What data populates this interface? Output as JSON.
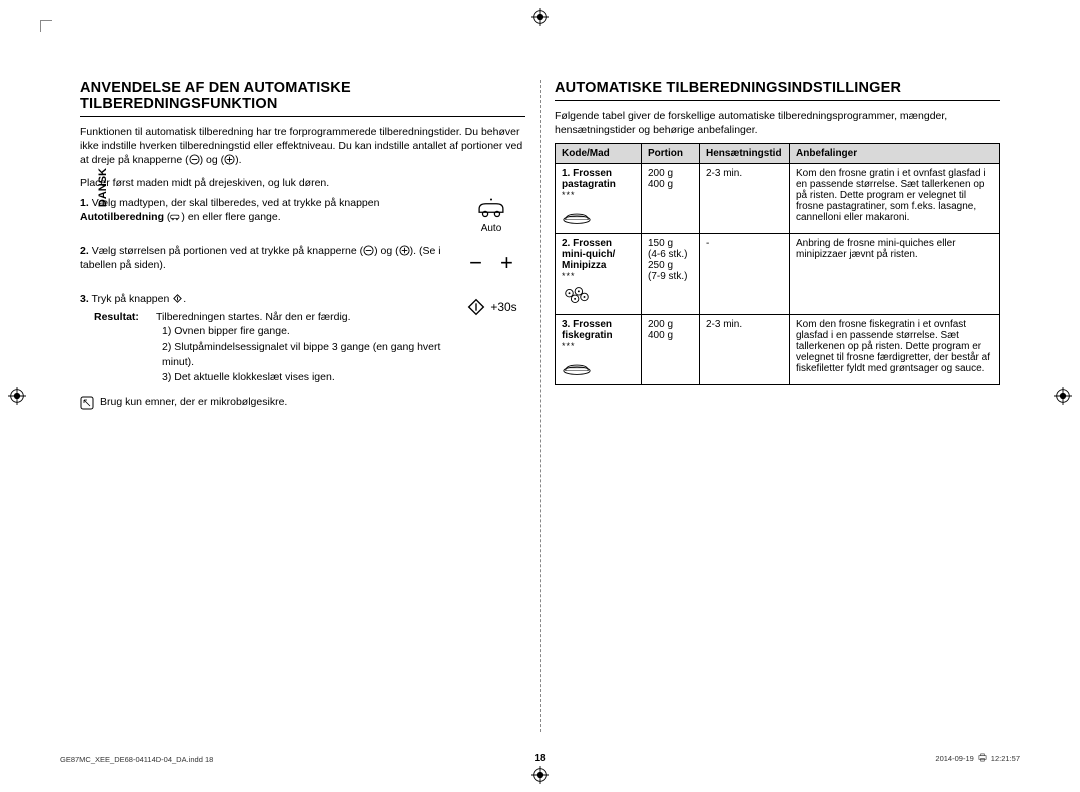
{
  "page_number": "18",
  "side_tab": "DANSK",
  "footer": {
    "left": "GE87MC_XEE_DE68-04114D-04_DA.indd   18",
    "right_date": "2014-09-19",
    "right_time": "12:21:57"
  },
  "left": {
    "heading": "ANVENDELSE AF DEN AUTOMATISKE TILBEREDNINGSFUNKTION",
    "intro1": "Funktionen til automatisk tilberedning har tre forprogrammerede tilberedningstider. Du behøver ikke indstille hverken tilberedningstid eller effektniveau. Du kan indstille antallet af portioner ved at dreje på knapperne",
    "intro2": "Placer først maden midt på drejeskiven, og luk døren.",
    "step1_pre": "1.",
    "step1": "Vælg madtypen, der skal tilberedes, ved at trykke på knappen ",
    "step1_bold": "Autotilberedning",
    "step1_after": " en eller flere gange.",
    "auto_label": "Auto",
    "step2_pre": "2.",
    "step2": "Vælg størrelsen på portionen ved at trykke på knapperne ",
    "step2_after": ". (Se i tabellen på siden).",
    "step3_pre": "3.",
    "step3": "Tryk på knappen ",
    "result_label": "Resultat:",
    "result_text": "Tilberedningen startes. Når den er færdig.",
    "r1": "1)  Ovnen bipper fire gange.",
    "r2": "2)  Slutpåmindelsessignalet vil bippe 3 gange (en gang hvert minut).",
    "r3": "3)  Det aktuelle klokkeslæt vises igen.",
    "start_label": "+30s",
    "note": "Brug kun emner, der er mikrobølgesikre.",
    "and_label": " og "
  },
  "right": {
    "heading": "AUTOMATISKE TILBEREDNINGSINDSTILLINGER",
    "intro": "Følgende tabel giver de forskellige automatiske tilberedningsprogrammer, mængder, hensætningstider og behørige anbefalinger.",
    "th1": "Kode/Mad",
    "th2": "Portion",
    "th3": "Hensætningstid",
    "th4": "Anbefalinger",
    "rows": [
      {
        "kode_num": "1.",
        "kode_l1": "Frossen",
        "kode_l2": "pastagratin",
        "portion": "200 g\n400 g",
        "time": "2-3 min.",
        "rec": "Kom den frosne gratin i et ovnfast glasfad i en passende størrelse. Sæt tallerkenen op på risten. Dette program er velegnet til frosne pastagratiner, som f.eks. lasagne, cannelloni eller makaroni."
      },
      {
        "kode_num": "2.",
        "kode_l1": "Frossen",
        "kode_l2": "mini-quich/",
        "kode_l3": "Minipizza",
        "portion": "150 g\n(4-6 stk.)\n250 g\n(7-9 stk.)",
        "time": "-",
        "rec": "Anbring de frosne mini-quiches eller minipizzaer jævnt på risten."
      },
      {
        "kode_num": "3.",
        "kode_l1": "Frossen",
        "kode_l2": "fiskegratin",
        "portion": "200 g\n400 g",
        "time": "2-3 min.",
        "rec": "Kom den frosne fiskegratin i et ovnfast glasfad i en passende størrelse. Sæt tallerkenen op på risten. Dette program er velegnet til frosne færdigretter, der består af fiskefiletter fyldt med grøntsager og sauce."
      }
    ]
  }
}
